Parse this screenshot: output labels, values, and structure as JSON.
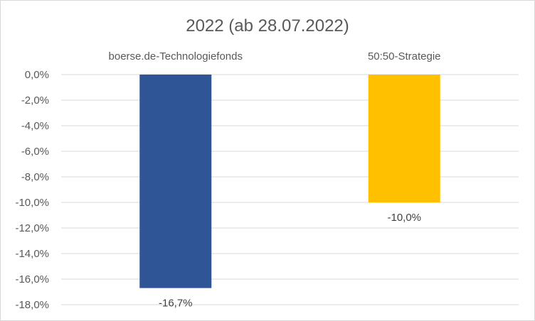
{
  "chart_data": {
    "type": "bar",
    "title": "2022 (ab 28.07.2022)",
    "xlabel": "",
    "ylabel": "",
    "categories": [
      "boerse.de-Technologiefonds",
      "50:50-Strategie"
    ],
    "values": [
      -16.7,
      -10.0
    ],
    "data_labels": [
      "-16,7%",
      "-10,0%"
    ],
    "colors": [
      "#2f5597",
      "#ffc000"
    ],
    "ylim": [
      -18,
      0
    ],
    "yticks": [
      0,
      -2,
      -4,
      -6,
      -8,
      -10,
      -12,
      -14,
      -16,
      -18
    ],
    "ytick_labels": [
      "0,0%",
      "-2,0%",
      "-4,0%",
      "-6,0%",
      "-8,0%",
      "-10,0%",
      "-12,0%",
      "-14,0%",
      "-16,0%",
      "-18,0%"
    ],
    "category_labels_position": "top",
    "grid": true,
    "legend": "none"
  }
}
